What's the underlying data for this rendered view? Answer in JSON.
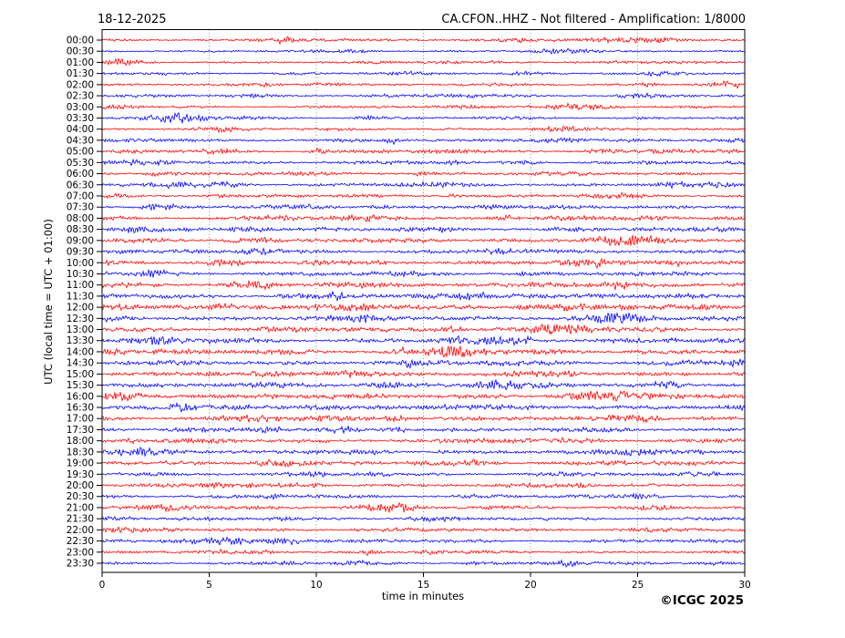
{
  "header": {
    "date": "18-12-2025",
    "station_title": "CA.CFON..HHZ - Not filtered - Amplification: 1/8000"
  },
  "footer": {
    "copyright": "©ICGC 2025"
  },
  "chart_data": {
    "type": "line",
    "subtype": "helicorder-daily-seismogram",
    "title": "CA.CFON..HHZ - Not filtered - Amplification: 1/8000",
    "date": "18-12-2025",
    "xlabel": "time in minutes",
    "ylabel": "UTC (local time = UTC + 01:00)",
    "x_range": [
      0,
      30
    ],
    "x_ticks": [
      0,
      5,
      10,
      15,
      20,
      25,
      30
    ],
    "minutes_per_row": 30,
    "grid": {
      "color": "#888888",
      "style": "dotted",
      "interval_minutes": 5,
      "vertical_only": true
    },
    "trace_colors_alternate": [
      "#ff0000",
      "#0000ff"
    ],
    "frame_color": "#000000",
    "row_labels": [
      "00:00",
      "00:30",
      "01:00",
      "01:30",
      "02:00",
      "02:30",
      "03:00",
      "03:30",
      "04:00",
      "04:30",
      "05:00",
      "05:30",
      "06:00",
      "06:30",
      "07:00",
      "07:30",
      "08:00",
      "08:30",
      "09:00",
      "09:30",
      "10:00",
      "10:30",
      "11:00",
      "11:30",
      "12:00",
      "12:30",
      "13:00",
      "13:30",
      "14:00",
      "14:30",
      "15:00",
      "15:30",
      "16:00",
      "16:30",
      "17:00",
      "17:30",
      "18:00",
      "18:30",
      "19:00",
      "19:30",
      "20:00",
      "20:30",
      "21:00",
      "21:30",
      "22:00",
      "22:30",
      "23:00",
      "23:30"
    ],
    "row_relative_activity": [
      0.55,
      0.5,
      0.5,
      0.55,
      0.5,
      0.55,
      0.5,
      0.55,
      0.55,
      0.6,
      0.65,
      0.7,
      0.7,
      0.7,
      0.65,
      0.75,
      0.8,
      0.8,
      0.85,
      0.8,
      0.85,
      0.85,
      0.9,
      0.95,
      1.0,
      1.0,
      1.0,
      0.95,
      1.0,
      0.95,
      0.95,
      1.0,
      1.0,
      0.95,
      0.9,
      0.85,
      0.85,
      0.8,
      0.8,
      0.75,
      0.75,
      0.7,
      0.7,
      0.65,
      0.7,
      0.65,
      0.6,
      0.6
    ],
    "signal_description": "Continuous unfiltered ambient seismic noise with intermittent small bursts; amplitude higher during daytime hours (approx. 08:00-20:00 UTC). No numeric amplitude labels shown.",
    "noise_seed": 20251218
  }
}
